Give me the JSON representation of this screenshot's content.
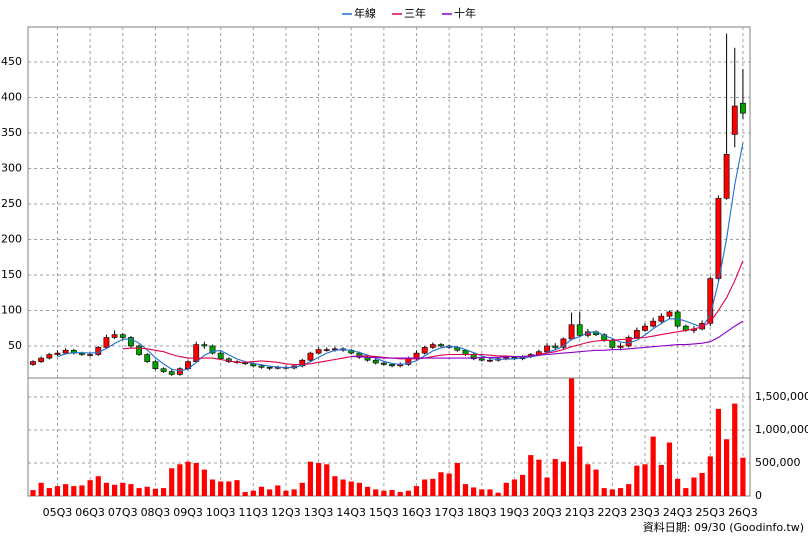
{
  "chart_data": {
    "type": "candlestick",
    "legend": "top",
    "grid": true,
    "footnote": "資料日期: 09/30 (Goodinfo.tw)",
    "categories": [
      null,
      null,
      null,
      "05Q3",
      null,
      null,
      null,
      "06Q3",
      null,
      null,
      null,
      "07Q3",
      null,
      null,
      null,
      "08Q3",
      null,
      null,
      null,
      "09Q3",
      null,
      null,
      null,
      "10Q3",
      null,
      null,
      null,
      "11Q3",
      null,
      null,
      null,
      "12Q3",
      null,
      null,
      null,
      "13Q3",
      null,
      null,
      null,
      "14Q3",
      null,
      null,
      null,
      "15Q3",
      null,
      null,
      null,
      "16Q3",
      null,
      null,
      null,
      "17Q3",
      null,
      null,
      null,
      "18Q3",
      null,
      null,
      null,
      "19Q3",
      null,
      null,
      null,
      "20Q3",
      null,
      null,
      null,
      "21Q3",
      null,
      null,
      null,
      "22Q3",
      null,
      null,
      null,
      "23Q3",
      null,
      null,
      null,
      "24Q3",
      null,
      null,
      null,
      "25Q3",
      null,
      null,
      null,
      "26Q3"
    ],
    "open": [
      24,
      28,
      33,
      38,
      40,
      44,
      40,
      38,
      38,
      48,
      62,
      66,
      62,
      50,
      38,
      28,
      18,
      14,
      10,
      18,
      28,
      52,
      50,
      40,
      32,
      28,
      27,
      25,
      22,
      20,
      19,
      20,
      19,
      22,
      30,
      40,
      45,
      45,
      46,
      44,
      40,
      34,
      30,
      26,
      24,
      22,
      24,
      32,
      40,
      48,
      52,
      50,
      48,
      44,
      38,
      32,
      30,
      30,
      32,
      34,
      32,
      35,
      38,
      42,
      50,
      48,
      60,
      80,
      65,
      70,
      66,
      58,
      48,
      50,
      62,
      72,
      78,
      85,
      92,
      98,
      78,
      72,
      74,
      82,
      145,
      258,
      348,
      392
    ],
    "high": [
      30,
      35,
      40,
      44,
      47,
      46,
      42,
      41,
      50,
      66,
      72,
      68,
      64,
      52,
      40,
      30,
      20,
      17,
      20,
      30,
      56,
      56,
      52,
      42,
      34,
      30,
      29,
      27,
      24,
      22,
      22,
      22,
      23,
      32,
      42,
      48,
      48,
      49,
      48,
      46,
      42,
      36,
      32,
      28,
      26,
      27,
      35,
      44,
      50,
      55,
      54,
      52,
      50,
      46,
      40,
      35,
      33,
      34,
      36,
      36,
      37,
      40,
      45,
      54,
      54,
      62,
      97,
      98,
      74,
      72,
      68,
      60,
      54,
      65,
      76,
      82,
      90,
      96,
      100,
      100,
      80,
      78,
      86,
      148,
      262,
      490,
      470,
      440
    ],
    "low": [
      22,
      26,
      31,
      36,
      38,
      38,
      36,
      35,
      36,
      46,
      60,
      58,
      48,
      36,
      26,
      16,
      12,
      8,
      8,
      16,
      26,
      46,
      38,
      30,
      26,
      25,
      23,
      20,
      18,
      16,
      17,
      17,
      17,
      20,
      28,
      38,
      42,
      42,
      42,
      38,
      32,
      28,
      24,
      22,
      20,
      20,
      22,
      30,
      38,
      46,
      48,
      46,
      42,
      36,
      30,
      28,
      27,
      28,
      30,
      30,
      30,
      33,
      36,
      40,
      44,
      45,
      58,
      62,
      62,
      64,
      56,
      44,
      44,
      48,
      60,
      70,
      76,
      82,
      88,
      76,
      70,
      68,
      72,
      78,
      140,
      256,
      330,
      370
    ],
    "close": [
      28,
      33,
      38,
      40,
      44,
      40,
      38,
      38,
      48,
      62,
      66,
      62,
      50,
      38,
      28,
      18,
      14,
      10,
      18,
      28,
      52,
      50,
      40,
      32,
      28,
      27,
      25,
      22,
      20,
      19,
      20,
      19,
      22,
      30,
      40,
      45,
      45,
      46,
      44,
      40,
      34,
      30,
      26,
      24,
      22,
      24,
      32,
      40,
      48,
      52,
      50,
      48,
      44,
      38,
      32,
      30,
      30,
      32,
      34,
      32,
      35,
      38,
      42,
      50,
      48,
      60,
      80,
      65,
      70,
      66,
      58,
      48,
      50,
      62,
      72,
      78,
      85,
      92,
      98,
      78,
      72,
      74,
      82,
      145,
      258,
      320,
      388,
      378
    ],
    "up_color": "#ff0000",
    "down_color": "#00a000",
    "ylim": [
      0,
      500
    ],
    "yticks": [
      50,
      100,
      150,
      200,
      250,
      300,
      350,
      400,
      450
    ],
    "series": [
      {
        "name": "年線",
        "color": "#1f6fd0",
        "values": [
          null,
          null,
          null,
          35,
          39,
          40.5,
          40.5,
          40,
          41,
          46.5,
          53.5,
          59.5,
          60,
          54,
          44.5,
          33.5,
          24.5,
          17.5,
          15,
          17.5,
          27,
          37,
          42.5,
          43.5,
          37.5,
          31.75,
          28,
          25.5,
          23.5,
          21.5,
          20.25,
          19.5,
          20,
          22.75,
          27.75,
          34.25,
          40,
          44,
          45,
          43.75,
          41,
          37,
          32.5,
          28.5,
          25.5,
          24,
          25.5,
          29.5,
          36,
          43,
          47.5,
          49.5,
          48.5,
          45,
          40.5,
          36,
          32.5,
          31,
          31.5,
          32,
          33.25,
          34.75,
          36.75,
          41.25,
          44.5,
          50,
          59.5,
          63.25,
          68.75,
          70.25,
          64.75,
          60.5,
          55.5,
          54.5,
          58,
          65.5,
          74.25,
          81.75,
          88.25,
          88.25,
          85,
          80.5,
          76.5,
          93.25,
          139.75,
          201.25,
          277.75,
          336
        ]
      },
      {
        "name": "三年",
        "color": "#e0004a",
        "values": [
          null,
          null,
          null,
          null,
          null,
          null,
          null,
          null,
          null,
          null,
          null,
          46,
          47,
          47,
          46,
          44,
          42,
          38,
          35,
          33,
          33,
          33,
          33,
          31,
          29,
          27,
          27,
          28,
          29,
          28,
          27,
          25,
          24,
          24,
          25,
          27,
          29,
          31,
          33,
          35,
          36,
          36,
          35,
          34,
          33,
          32,
          32,
          32,
          33,
          35,
          37,
          38,
          38,
          38,
          38,
          38,
          37,
          36,
          36,
          35,
          35,
          36,
          38,
          40,
          42,
          45,
          49,
          52,
          55,
          57,
          58,
          58,
          59,
          60,
          61,
          62,
          64,
          66,
          68,
          70,
          72,
          74,
          77,
          84,
          100,
          118,
          142,
          170
        ]
      },
      {
        "name": "十年",
        "color": "#8a00c8",
        "values": [
          null,
          null,
          null,
          null,
          null,
          null,
          null,
          null,
          null,
          null,
          null,
          null,
          null,
          null,
          null,
          null,
          null,
          null,
          null,
          null,
          null,
          null,
          null,
          null,
          null,
          null,
          null,
          null,
          null,
          null,
          null,
          null,
          null,
          null,
          null,
          null,
          null,
          null,
          null,
          35,
          35,
          34,
          34,
          33,
          33,
          33,
          33,
          33,
          33,
          33,
          33,
          33,
          33,
          33,
          33,
          34,
          34,
          34,
          35,
          35,
          35,
          36,
          37,
          38,
          39,
          40,
          41,
          42,
          43,
          44,
          44,
          45,
          45,
          46,
          47,
          48,
          49,
          50,
          51,
          52,
          52,
          53,
          54,
          56,
          62,
          70,
          78,
          85
        ]
      }
    ],
    "volume": {
      "type": "bar",
      "color": "#ff0000",
      "values": [
        90000,
        200000,
        120000,
        150000,
        180000,
        150000,
        160000,
        240000,
        300000,
        200000,
        170000,
        200000,
        180000,
        120000,
        140000,
        110000,
        120000,
        420000,
        480000,
        520000,
        500000,
        400000,
        250000,
        220000,
        220000,
        240000,
        60000,
        80000,
        140000,
        100000,
        160000,
        80000,
        100000,
        200000,
        520000,
        500000,
        480000,
        300000,
        250000,
        220000,
        200000,
        140000,
        100000,
        80000,
        90000,
        60000,
        80000,
        150000,
        250000,
        260000,
        360000,
        340000,
        500000,
        180000,
        130000,
        100000,
        100000,
        50000,
        200000,
        250000,
        320000,
        620000,
        550000,
        280000,
        560000,
        520000,
        1780000,
        750000,
        480000,
        400000,
        120000,
        100000,
        120000,
        180000,
        460000,
        480000,
        900000,
        470000,
        810000,
        260000,
        120000,
        280000,
        350000,
        600000,
        1320000,
        860000,
        1400000,
        580000
      ],
      "ylim": [
        0,
        1800000
      ],
      "yticks": [
        0,
        {
          "value": 500000,
          "label": "500,000"
        },
        {
          "value": 1000000,
          "label": "1,000,000"
        },
        {
          "value": 1500000,
          "label": "1,500,000"
        }
      ]
    }
  }
}
